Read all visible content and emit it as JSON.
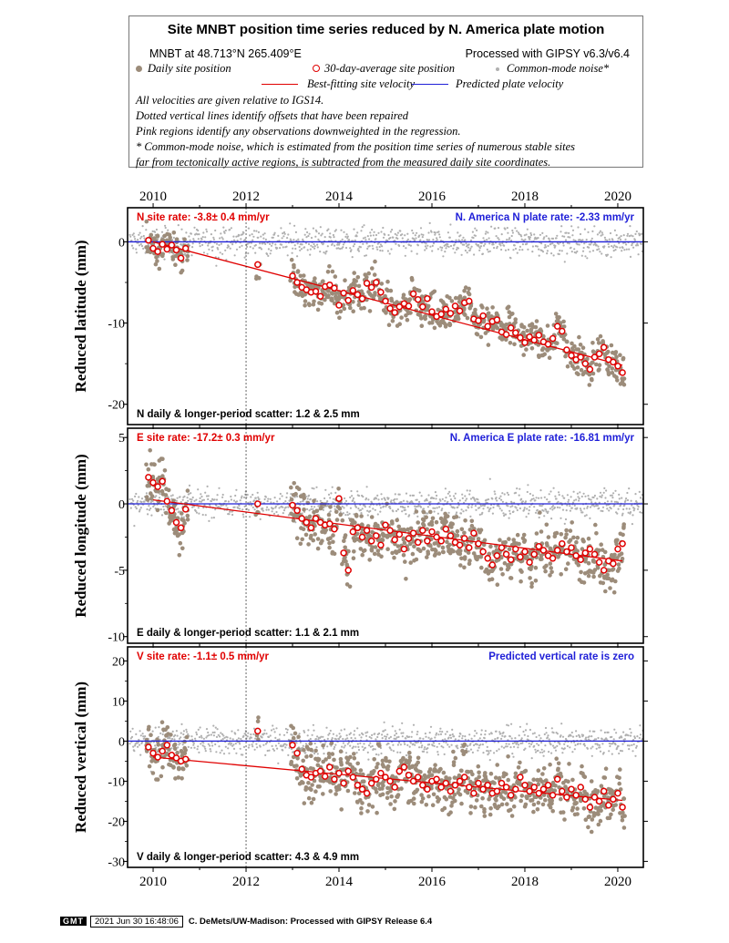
{
  "legend": {
    "title": "Site MNBT position time series reduced by N. America plate motion",
    "location": "MNBT at 48.713°N 265.409°E",
    "processing": "Processed with GIPSY v6.3/v6.4",
    "daily_label": "Daily site position",
    "avg_label": "30-day-average site position",
    "cmn_label": "Common-mode noise*",
    "best_label": "Best-fitting site velocity",
    "pred_label": "Predicted plate velocity",
    "notes": [
      "All velocities are given relative to IGS14.",
      "Dotted vertical lines identify offsets that have been repaired",
      "Pink regions identify any observations downweighted in the regression.",
      "* Common-mode noise, which is estimated from the position time series of numerous stable sites",
      "far from tectonically active regions, is subtracted from the measured daily site coordinates."
    ]
  },
  "colors": {
    "daily": "#9c8c7a",
    "average": "#e00000",
    "common_mode": "#b0b0b0",
    "best_fit": "#e00000",
    "predicted": "#1f1fd8"
  },
  "chart_data": [
    {
      "type": "scatter",
      "component": "N",
      "ylabel": "Reduced latitude (mm)",
      "xlim": [
        2009.45,
        2020.55
      ],
      "ylim": [
        -22.5,
        4.2
      ],
      "yticks": [
        0,
        -10,
        -20
      ],
      "xticks": [
        2010,
        2012,
        2014,
        2016,
        2018,
        2020
      ],
      "offset_year": 2012.0,
      "site_rate_label": "N site rate:  -3.8± 0.4 mm/yr",
      "plate_rate_label": "N. America N plate rate: -2.33 mm/yr",
      "scatter_label": "N daily & longer-period scatter:   1.2 &   2.5 mm",
      "best_fit": {
        "x": [
          2010.0,
          2020.1
        ],
        "y": [
          0.0,
          -15.2
        ]
      },
      "predicted_y": 0,
      "averages": [
        [
          2009.9,
          0.2
        ],
        [
          2010.0,
          -0.8
        ],
        [
          2010.1,
          -1.2
        ],
        [
          2010.2,
          -0.3
        ],
        [
          2010.3,
          -0.9
        ],
        [
          2010.4,
          -0.4
        ],
        [
          2010.5,
          -1.0
        ],
        [
          2010.6,
          -2.0
        ],
        [
          2010.7,
          -0.8
        ],
        [
          2012.25,
          -2.8
        ],
        [
          2013.0,
          -4.2
        ],
        [
          2013.1,
          -5.0
        ],
        [
          2013.2,
          -5.6
        ],
        [
          2013.3,
          -5.9
        ],
        [
          2013.4,
          -6.2
        ],
        [
          2013.5,
          -6.1
        ],
        [
          2013.6,
          -6.7
        ],
        [
          2013.7,
          -5.5
        ],
        [
          2013.8,
          -5.3
        ],
        [
          2013.9,
          -5.7
        ],
        [
          2014.0,
          -7.8
        ],
        [
          2014.1,
          -6.3
        ],
        [
          2014.2,
          -7.2
        ],
        [
          2014.3,
          -6.0
        ],
        [
          2014.4,
          -6.5
        ],
        [
          2014.5,
          -7.0
        ],
        [
          2014.6,
          -5.1
        ],
        [
          2014.7,
          -5.6
        ],
        [
          2014.8,
          -5.0
        ],
        [
          2014.9,
          -6.2
        ],
        [
          2015.0,
          -7.3
        ],
        [
          2015.1,
          -8.2
        ],
        [
          2015.2,
          -8.7
        ],
        [
          2015.3,
          -8.0
        ],
        [
          2015.4,
          -7.6
        ],
        [
          2015.5,
          -7.9
        ],
        [
          2015.6,
          -6.4
        ],
        [
          2015.7,
          -7.1
        ],
        [
          2015.8,
          -8.0
        ],
        [
          2015.9,
          -7.0
        ],
        [
          2016.0,
          -8.6
        ],
        [
          2016.1,
          -9.2
        ],
        [
          2016.2,
          -8.9
        ],
        [
          2016.3,
          -8.3
        ],
        [
          2016.4,
          -8.8
        ],
        [
          2016.5,
          -7.9
        ],
        [
          2016.6,
          -8.5
        ],
        [
          2016.7,
          -7.5
        ],
        [
          2016.8,
          -7.3
        ],
        [
          2016.9,
          -9.5
        ],
        [
          2017.0,
          -9.7
        ],
        [
          2017.1,
          -9.1
        ],
        [
          2017.2,
          -10.4
        ],
        [
          2017.3,
          -9.8
        ],
        [
          2017.4,
          -9.6
        ],
        [
          2017.5,
          -11.1
        ],
        [
          2017.6,
          -11.4
        ],
        [
          2017.7,
          -10.6
        ],
        [
          2017.8,
          -11.2
        ],
        [
          2017.9,
          -11.8
        ],
        [
          2018.0,
          -12.4
        ],
        [
          2018.1,
          -11.7
        ],
        [
          2018.2,
          -12.1
        ],
        [
          2018.3,
          -11.5
        ],
        [
          2018.4,
          -12.3
        ],
        [
          2018.5,
          -12.6
        ],
        [
          2018.6,
          -11.9
        ],
        [
          2018.7,
          -10.4
        ],
        [
          2018.8,
          -11.0
        ],
        [
          2018.9,
          -13.3
        ],
        [
          2019.0,
          -14.0
        ],
        [
          2019.1,
          -14.5
        ],
        [
          2019.2,
          -14.2
        ],
        [
          2019.3,
          -15.0
        ],
        [
          2019.4,
          -15.7
        ],
        [
          2019.5,
          -14.2
        ],
        [
          2019.6,
          -13.8
        ],
        [
          2019.7,
          -13.0
        ],
        [
          2019.8,
          -14.5
        ],
        [
          2019.9,
          -14.8
        ],
        [
          2020.0,
          -15.3
        ],
        [
          2020.1,
          -16.1
        ]
      ],
      "spread": 1.5
    },
    {
      "type": "scatter",
      "component": "E",
      "ylabel": "Reduced longitude (mm)",
      "xlim": [
        2009.45,
        2020.55
      ],
      "ylim": [
        -10.5,
        5.7
      ],
      "yticks": [
        5,
        0,
        -5,
        -10
      ],
      "xticks": [
        2010,
        2012,
        2014,
        2016,
        2018,
        2020
      ],
      "offset_year": 2012.0,
      "site_rate_label": "E site rate: -17.2± 0.3 mm/yr",
      "plate_rate_label": "N. America E plate rate: -16.81 mm/yr",
      "scatter_label": "E daily & longer-period scatter:   1.1 &   2.1 mm",
      "best_fit": {
        "x": [
          2010.0,
          2020.1
        ],
        "y": [
          0.3,
          -4.3
        ]
      },
      "predicted_y": 0,
      "averages": [
        [
          2009.9,
          2.0
        ],
        [
          2010.0,
          1.6
        ],
        [
          2010.1,
          1.3
        ],
        [
          2010.2,
          1.7
        ],
        [
          2010.3,
          0.2
        ],
        [
          2010.4,
          -0.5
        ],
        [
          2010.5,
          -1.4
        ],
        [
          2010.6,
          -1.8
        ],
        [
          2010.7,
          -0.4
        ],
        [
          2012.25,
          0.0
        ],
        [
          2013.0,
          -0.1
        ],
        [
          2013.1,
          -0.5
        ],
        [
          2013.2,
          -1.1
        ],
        [
          2013.3,
          -1.4
        ],
        [
          2013.4,
          -1.8
        ],
        [
          2013.5,
          -1.1
        ],
        [
          2013.6,
          -1.4
        ],
        [
          2013.7,
          -1.6
        ],
        [
          2013.8,
          -1.5
        ],
        [
          2013.9,
          -1.9
        ],
        [
          2014.0,
          0.4
        ],
        [
          2014.1,
          -3.7
        ],
        [
          2014.2,
          -5.0
        ],
        [
          2014.3,
          -2.1
        ],
        [
          2014.4,
          -1.8
        ],
        [
          2014.5,
          -2.5
        ],
        [
          2014.6,
          -2.0
        ],
        [
          2014.7,
          -2.8
        ],
        [
          2014.8,
          -2.4
        ],
        [
          2014.9,
          -3.1
        ],
        [
          2015.0,
          -1.6
        ],
        [
          2015.1,
          -2.0
        ],
        [
          2015.2,
          -2.7
        ],
        [
          2015.3,
          -2.3
        ],
        [
          2015.4,
          -3.4
        ],
        [
          2015.5,
          -2.6
        ],
        [
          2015.6,
          -2.2
        ],
        [
          2015.7,
          -2.9
        ],
        [
          2015.8,
          -2.0
        ],
        [
          2015.9,
          -2.8
        ],
        [
          2016.0,
          -2.1
        ],
        [
          2016.1,
          -2.5
        ],
        [
          2016.2,
          -2.8
        ],
        [
          2016.3,
          -1.9
        ],
        [
          2016.4,
          -2.4
        ],
        [
          2016.5,
          -2.9
        ],
        [
          2016.6,
          -3.1
        ],
        [
          2016.7,
          -2.6
        ],
        [
          2016.8,
          -3.3
        ],
        [
          2016.9,
          -2.2
        ],
        [
          2017.0,
          -3.0
        ],
        [
          2017.1,
          -3.6
        ],
        [
          2017.2,
          -4.1
        ],
        [
          2017.3,
          -4.6
        ],
        [
          2017.4,
          -3.9
        ],
        [
          2017.5,
          -3.3
        ],
        [
          2017.6,
          -3.8
        ],
        [
          2017.7,
          -4.2
        ],
        [
          2017.8,
          -3.4
        ],
        [
          2017.9,
          -4.0
        ],
        [
          2018.0,
          -3.6
        ],
        [
          2018.1,
          -4.4
        ],
        [
          2018.2,
          -3.8
        ],
        [
          2018.3,
          -3.2
        ],
        [
          2018.4,
          -3.5
        ],
        [
          2018.5,
          -3.9
        ],
        [
          2018.6,
          -4.1
        ],
        [
          2018.7,
          -3.5
        ],
        [
          2018.8,
          -3.0
        ],
        [
          2018.9,
          -3.6
        ],
        [
          2019.0,
          -3.3
        ],
        [
          2019.1,
          -3.9
        ],
        [
          2019.2,
          -4.2
        ],
        [
          2019.3,
          -3.7
        ],
        [
          2019.4,
          -3.4
        ],
        [
          2019.5,
          -3.8
        ],
        [
          2019.6,
          -4.4
        ],
        [
          2019.7,
          -5.0
        ],
        [
          2019.8,
          -4.3
        ],
        [
          2019.9,
          -4.5
        ],
        [
          2020.0,
          -3.4
        ],
        [
          2020.1,
          -3.0
        ]
      ],
      "spread": 1.3
    },
    {
      "type": "scatter",
      "component": "V",
      "ylabel": "Reduced vertical (mm)",
      "xlim": [
        2009.45,
        2020.55
      ],
      "ylim": [
        -31.5,
        23.5
      ],
      "yticks": [
        20,
        10,
        0,
        -10,
        -20,
        -30
      ],
      "xticks": [
        2010,
        2012,
        2014,
        2016,
        2018,
        2020
      ],
      "offset_year": 2012.0,
      "site_rate_label": "V site rate:  -1.1± 0.5 mm/yr",
      "plate_rate_label": "Predicted vertical rate is zero",
      "scatter_label": "V daily & longer-period scatter:   4.3 &   4.9 mm",
      "best_fit": {
        "x": [
          2010.0,
          2020.1
        ],
        "y": [
          -4.0,
          -14.8
        ]
      },
      "predicted_y": 0,
      "averages": [
        [
          2009.9,
          -1.5
        ],
        [
          2010.0,
          -3.0
        ],
        [
          2010.1,
          -4.0
        ],
        [
          2010.2,
          -2.5
        ],
        [
          2010.3,
          -1.0
        ],
        [
          2010.4,
          -3.5
        ],
        [
          2010.5,
          -4.2
        ],
        [
          2010.6,
          -5.0
        ],
        [
          2010.7,
          -4.5
        ],
        [
          2012.25,
          2.5
        ],
        [
          2013.0,
          -1.0
        ],
        [
          2013.1,
          -3.0
        ],
        [
          2013.2,
          -7.0
        ],
        [
          2013.3,
          -8.5
        ],
        [
          2013.4,
          -9.0
        ],
        [
          2013.5,
          -8.0
        ],
        [
          2013.6,
          -7.5
        ],
        [
          2013.7,
          -8.8
        ],
        [
          2013.8,
          -6.5
        ],
        [
          2013.9,
          -9.5
        ],
        [
          2014.0,
          -8.0
        ],
        [
          2014.1,
          -10.5
        ],
        [
          2014.2,
          -7.5
        ],
        [
          2014.3,
          -9.0
        ],
        [
          2014.4,
          -11.0
        ],
        [
          2014.5,
          -12.0
        ],
        [
          2014.6,
          -13.0
        ],
        [
          2014.7,
          -10.5
        ],
        [
          2014.8,
          -9.5
        ],
        [
          2014.9,
          -8.0
        ],
        [
          2015.0,
          -9.0
        ],
        [
          2015.1,
          -10.0
        ],
        [
          2015.2,
          -11.5
        ],
        [
          2015.3,
          -7.5
        ],
        [
          2015.4,
          -6.5
        ],
        [
          2015.5,
          -8.5
        ],
        [
          2015.6,
          -10.0
        ],
        [
          2015.7,
          -9.0
        ],
        [
          2015.8,
          -11.0
        ],
        [
          2015.9,
          -12.0
        ],
        [
          2016.0,
          -10.0
        ],
        [
          2016.1,
          -9.5
        ],
        [
          2016.2,
          -11.5
        ],
        [
          2016.3,
          -10.5
        ],
        [
          2016.4,
          -12.5
        ],
        [
          2016.5,
          -11.0
        ],
        [
          2016.6,
          -10.0
        ],
        [
          2016.7,
          -9.0
        ],
        [
          2016.8,
          -11.5
        ],
        [
          2016.9,
          -13.0
        ],
        [
          2017.0,
          -10.5
        ],
        [
          2017.1,
          -12.0
        ],
        [
          2017.2,
          -11.0
        ],
        [
          2017.3,
          -13.0
        ],
        [
          2017.4,
          -12.5
        ],
        [
          2017.5,
          -10.5
        ],
        [
          2017.6,
          -11.5
        ],
        [
          2017.7,
          -13.5
        ],
        [
          2017.8,
          -12.0
        ],
        [
          2017.9,
          -9.0
        ],
        [
          2018.0,
          -11.0
        ],
        [
          2018.1,
          -12.5
        ],
        [
          2018.2,
          -11.5
        ],
        [
          2018.3,
          -13.0
        ],
        [
          2018.4,
          -12.0
        ],
        [
          2018.5,
          -11.0
        ],
        [
          2018.6,
          -13.5
        ],
        [
          2018.7,
          -9.5
        ],
        [
          2018.8,
          -12.5
        ],
        [
          2018.9,
          -14.0
        ],
        [
          2019.0,
          -12.0
        ],
        [
          2019.1,
          -13.5
        ],
        [
          2019.2,
          -11.5
        ],
        [
          2019.3,
          -14.5
        ],
        [
          2019.4,
          -16.5
        ],
        [
          2019.5,
          -14.0
        ],
        [
          2019.6,
          -15.0
        ],
        [
          2019.7,
          -12.5
        ],
        [
          2019.8,
          -16.0
        ],
        [
          2019.9,
          -14.5
        ],
        [
          2020.0,
          -13.0
        ],
        [
          2020.1,
          -16.5
        ]
      ],
      "spread": 4.3
    }
  ],
  "footer": {
    "logo": "GMT",
    "timestamp": "2021 Jun 30 16:48:06",
    "credit": "C. DeMets/UW-Madison: Processed with GIPSY Release 6.4"
  }
}
